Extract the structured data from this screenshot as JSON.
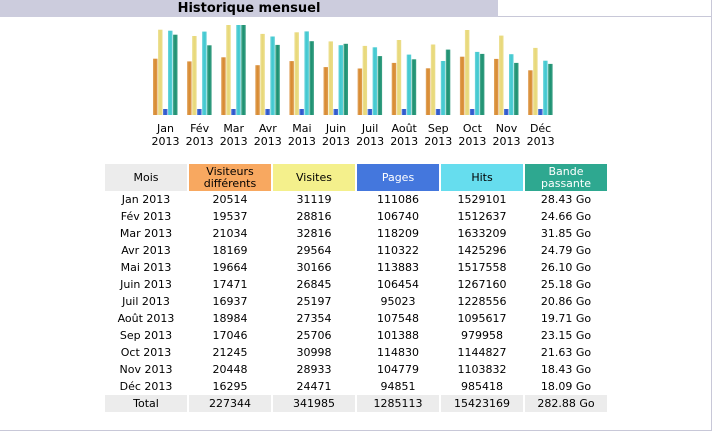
{
  "title": "Historique mensuel",
  "chart_data": {
    "type": "bar",
    "categories": [
      {
        "month": "Jan",
        "year": "2013"
      },
      {
        "month": "Fév",
        "year": "2013"
      },
      {
        "month": "Mar",
        "year": "2013"
      },
      {
        "month": "Avr",
        "year": "2013"
      },
      {
        "month": "Mai",
        "year": "2013"
      },
      {
        "month": "Juin",
        "year": "2013"
      },
      {
        "month": "Juil",
        "year": "2013"
      },
      {
        "month": "Août",
        "year": "2013"
      },
      {
        "month": "Sep",
        "year": "2013"
      },
      {
        "month": "Oct",
        "year": "2013"
      },
      {
        "month": "Nov",
        "year": "2013"
      },
      {
        "month": "Déc",
        "year": "2013"
      }
    ],
    "series": [
      {
        "key": "visitors",
        "color": "#d88a30",
        "values": [
          20514,
          19537,
          21034,
          18169,
          19664,
          17471,
          16937,
          18984,
          17046,
          21245,
          20448,
          16295
        ]
      },
      {
        "key": "visits",
        "color": "#e8d878",
        "values": [
          31119,
          28816,
          32816,
          29564,
          30166,
          26845,
          25197,
          27354,
          25706,
          30998,
          28933,
          24471
        ]
      },
      {
        "key": "pages",
        "color": "#2a55cc",
        "values": [
          111086,
          106740,
          118209,
          110322,
          113883,
          106454,
          95023,
          107548,
          101388,
          114830,
          104779,
          94851
        ]
      },
      {
        "key": "hits",
        "color": "#40c8d0",
        "values": [
          1529101,
          1512637,
          1633209,
          1425296,
          1517558,
          1267160,
          1228556,
          1095617,
          979958,
          1144827,
          1103832,
          985418
        ]
      },
      {
        "key": "bandwidth",
        "color": "#1a9070",
        "values": [
          28.43,
          24.66,
          31.85,
          24.79,
          26.1,
          25.18,
          20.86,
          19.71,
          23.15,
          21.63,
          18.43,
          18.09
        ]
      }
    ],
    "axes": "none",
    "legend": "none",
    "grid": false
  },
  "table": {
    "headers": {
      "mois": "Mois",
      "visitors": "Visiteurs différents",
      "visits": "Visites",
      "pages": "Pages",
      "hits": "Hits",
      "bandwidth": "Bande passante"
    },
    "header_colors": {
      "visitors": "#f8a860",
      "visits": "#f4f08c",
      "pages": "#4477dd",
      "hits": "#66ddee",
      "bandwidth": "#2ea890"
    },
    "rows": [
      [
        "Jan 2013",
        "20514",
        "31119",
        "111086",
        "1529101",
        "28.43 Go"
      ],
      [
        "Fév 2013",
        "19537",
        "28816",
        "106740",
        "1512637",
        "24.66 Go"
      ],
      [
        "Mar 2013",
        "21034",
        "32816",
        "118209",
        "1633209",
        "31.85 Go"
      ],
      [
        "Avr 2013",
        "18169",
        "29564",
        "110322",
        "1425296",
        "24.79 Go"
      ],
      [
        "Mai 2013",
        "19664",
        "30166",
        "113883",
        "1517558",
        "26.10 Go"
      ],
      [
        "Juin 2013",
        "17471",
        "26845",
        "106454",
        "1267160",
        "25.18 Go"
      ],
      [
        "Juil 2013",
        "16937",
        "25197",
        "95023",
        "1228556",
        "20.86 Go"
      ],
      [
        "Août 2013",
        "18984",
        "27354",
        "107548",
        "1095617",
        "19.71 Go"
      ],
      [
        "Sep 2013",
        "17046",
        "25706",
        "101388",
        "979958",
        "23.15 Go"
      ],
      [
        "Oct 2013",
        "21245",
        "30998",
        "114830",
        "1144827",
        "21.63 Go"
      ],
      [
        "Nov 2013",
        "20448",
        "28933",
        "104779",
        "1103832",
        "18.43 Go"
      ],
      [
        "Déc 2013",
        "16295",
        "24471",
        "94851",
        "985418",
        "18.09 Go"
      ]
    ],
    "total": [
      "Total",
      "227344",
      "341985",
      "1285113",
      "15423169",
      "282.88 Go"
    ]
  }
}
